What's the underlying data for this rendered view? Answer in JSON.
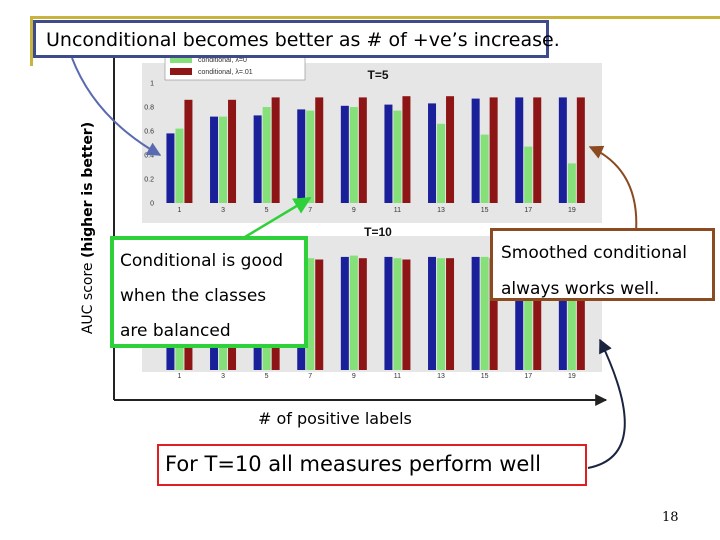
{
  "callouts": {
    "title": "Unconditional becomes better as # of +ve’s increase.",
    "green_line1": "Conditional is good",
    "green_line2": "when the classes",
    "green_line3": "are balanced",
    "red_line1": "Smoothed conditional",
    "red_line2": "always works well.",
    "bottom": "For T=10 all measures perform well"
  },
  "axes": {
    "ylabel_bold": "(higher is better)",
    "ylabel_plain": "AUC score",
    "xlabel": "# of positive labels"
  },
  "page_number": "18",
  "colors": {
    "series_unconditional": "#1a1f9a",
    "series_conditional": "#86e07a",
    "series_smoothed": "#8e1515"
  },
  "chart_data": [
    {
      "type": "bar",
      "title": "T=5",
      "categories": [
        "1",
        "3",
        "5",
        "7",
        "9",
        "11",
        "13",
        "15",
        "17",
        "19"
      ],
      "yticks": [
        "0",
        "0.2",
        "0.4",
        "0.6",
        "0.8",
        "1"
      ],
      "ylim": [
        0,
        1
      ],
      "legend": [
        "conditional, λ=0",
        "conditional, λ=.01"
      ],
      "series": [
        {
          "name": "",
          "values": [
            0.58,
            0.72,
            0.73,
            0.78,
            0.81,
            0.82,
            0.83,
            0.87,
            0.88,
            0.88
          ]
        },
        {
          "name": "conditional, λ=0",
          "values": [
            0.62,
            0.72,
            0.8,
            0.77,
            0.8,
            0.77,
            0.66,
            0.57,
            0.47,
            0.33
          ]
        },
        {
          "name": "conditional, λ=.01",
          "values": [
            0.86,
            0.86,
            0.88,
            0.88,
            0.88,
            0.89,
            0.89,
            0.88,
            0.88,
            0.88
          ]
        }
      ]
    },
    {
      "type": "bar",
      "title": "T=10",
      "categories": [
        "1",
        "3",
        "5",
        "7",
        "9",
        "11",
        "13",
        "15",
        "17",
        "19"
      ],
      "ylim": [
        0,
        1
      ],
      "series": [
        {
          "name": "",
          "values": [
            0.85,
            0.86,
            0.87,
            0.85,
            0.87,
            0.87,
            0.87,
            0.87,
            0.87,
            0.87
          ]
        },
        {
          "name": "conditional, λ=0",
          "values": [
            0.86,
            0.87,
            0.88,
            0.86,
            0.88,
            0.86,
            0.86,
            0.87,
            0.86,
            0.86
          ]
        },
        {
          "name": "conditional, λ=.01",
          "values": [
            0.85,
            0.86,
            0.86,
            0.85,
            0.86,
            0.85,
            0.86,
            0.86,
            0.86,
            0.86
          ]
        }
      ]
    }
  ]
}
